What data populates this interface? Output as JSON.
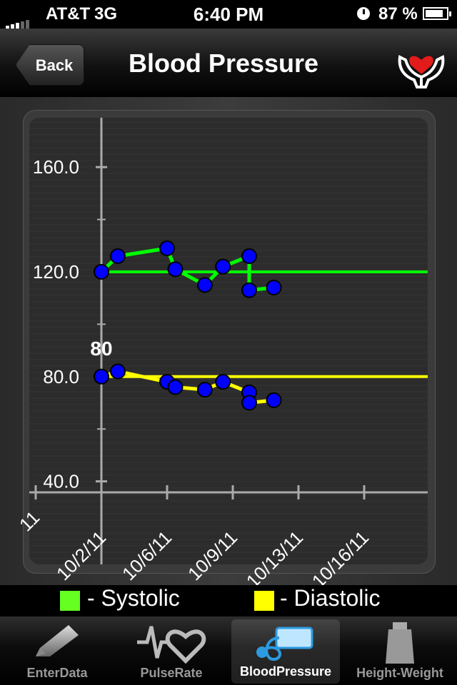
{
  "status_bar": {
    "carrier": "AT&T",
    "network": "3G",
    "time": "6:40 PM",
    "battery": "87 %",
    "battery_level": 0.87
  },
  "nav": {
    "back_label": "Back",
    "title": "Blood Pressure",
    "icon": "heart-hands-icon"
  },
  "chart_data": {
    "type": "line",
    "y_ticks": [
      "40.0",
      "80.0",
      "120.0",
      "160.0"
    ],
    "x_ticks": [
      "10/2/11",
      "10/6/11",
      "10/9/11",
      "10/13/11",
      "10/16/11"
    ],
    "x_tick_partial_left": "11",
    "ylim": [
      20,
      176
    ],
    "highlight_label": "80",
    "colors": {
      "systolic": "#00ff00",
      "diastolic": "#ffff00",
      "point": "#0000ff"
    },
    "series": [
      {
        "name": "Systolic",
        "color": "#00ff00",
        "x": [
          0,
          1,
          4,
          4.5,
          6.3,
          7.4,
          9,
          9,
          10.5
        ],
        "y": [
          120,
          126,
          129,
          121,
          115,
          122,
          126,
          113,
          114
        ]
      },
      {
        "name": "Diastolic",
        "color": "#ffff00",
        "x": [
          0,
          1,
          4,
          4.5,
          6.3,
          7.4,
          9,
          9,
          10.5
        ],
        "y": [
          80,
          82,
          78,
          76,
          75,
          78,
          74,
          70,
          71
        ]
      }
    ],
    "reference_lines": [
      {
        "series": "Systolic",
        "y": 120
      },
      {
        "series": "Diastolic",
        "y": 80
      }
    ]
  },
  "legend": {
    "systolic_label": "- Systolic",
    "diastolic_label": "- Diastolic",
    "systolic_color": "#66ff22",
    "diastolic_color": "#ffff00"
  },
  "tabs": [
    {
      "label": "EnterData",
      "icon": "pencil-icon",
      "selected": false
    },
    {
      "label": "PulseRate",
      "icon": "heartbeat-icon",
      "selected": false
    },
    {
      "label": "BloodPressure",
      "icon": "blood-pressure-cuff-icon",
      "selected": true
    },
    {
      "label": "Height-Weight",
      "icon": "weight-icon",
      "selected": false
    }
  ]
}
